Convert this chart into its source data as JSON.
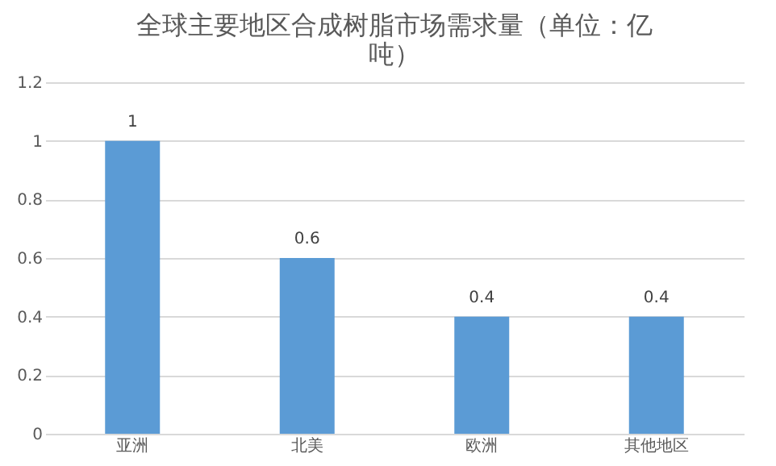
{
  "chart_data": {
    "type": "bar",
    "title": "全球主要地区合成树脂市场需求量（单位：亿吨）",
    "categories": [
      "亚洲",
      "北美",
      "欧洲",
      "其他地区"
    ],
    "values": [
      1,
      0.6,
      0.4,
      0.4
    ],
    "color": "#5b9bd5",
    "ylim": [
      0,
      1.2
    ],
    "yticks": [
      0,
      0.2,
      0.4,
      0.6,
      0.8,
      1,
      1.2
    ],
    "grid": "y",
    "data_labels": true
  }
}
